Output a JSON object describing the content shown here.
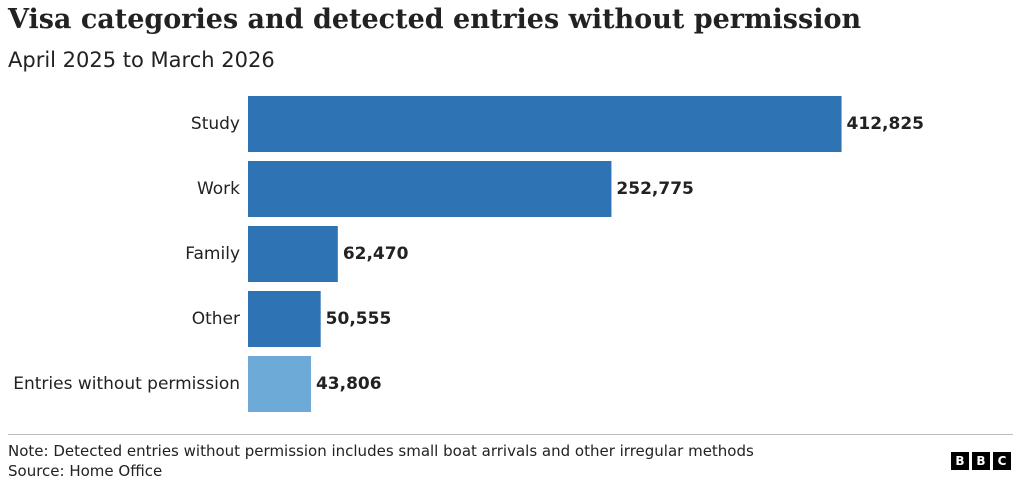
{
  "title": "Visa categories and detected entries without permission",
  "subtitle": "April 2025 to March 2026",
  "note": "Note: Detected entries without permission includes small boat arrivals and other irregular methods",
  "source": "Source: Home Office",
  "logo": {
    "letters": [
      "B",
      "B",
      "C"
    ]
  },
  "chart_data": {
    "type": "bar",
    "orientation": "horizontal",
    "categories": [
      "Study",
      "Work",
      "Family",
      "Other",
      "Entries without permission"
    ],
    "values": [
      412825,
      252775,
      62470,
      50555,
      43806
    ],
    "value_labels": [
      "412,825",
      "252,775",
      "62,470",
      "50,555",
      "43,806"
    ],
    "colors": [
      "#2e74b5",
      "#2e74b5",
      "#2e74b5",
      "#2e74b5",
      "#6eaad8"
    ],
    "xlim": [
      0,
      450000
    ],
    "grid": false,
    "legend": "none"
  }
}
